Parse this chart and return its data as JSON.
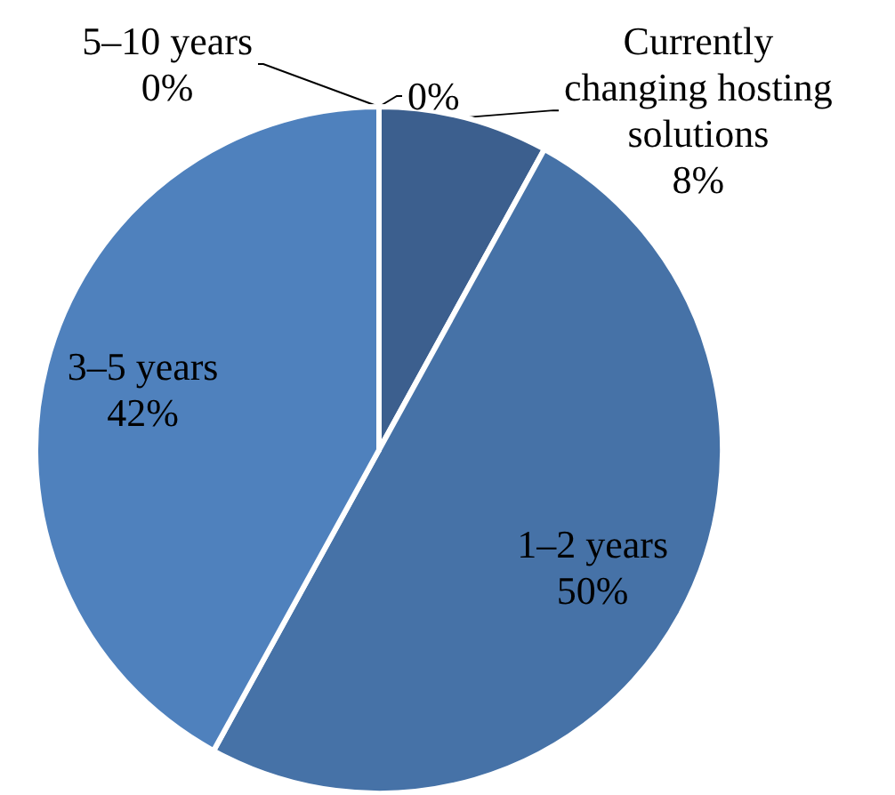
{
  "chart_data": {
    "type": "pie",
    "categories": [
      null,
      "Currently changing hosting solutions",
      "1–2 years",
      "3–5 years",
      "5–10 years"
    ],
    "values": [
      0,
      8,
      50,
      42,
      0
    ],
    "colors": [
      "#3b5f8e",
      "#3c5f8e",
      "#4672a7",
      "#4f81bd",
      "#4f81bd"
    ],
    "value_labels": [
      "0%",
      "8%",
      "50%",
      "42%",
      "0%"
    ]
  }
}
